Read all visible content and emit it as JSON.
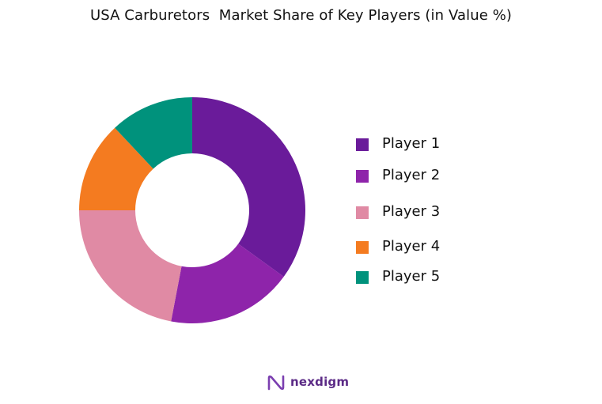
{
  "chart_data": {
    "type": "pie",
    "subtype": "donut",
    "title": "USA Carburetors  Market Share of Key Players (in Value %)",
    "categories": [
      "Player 1",
      "Player 2",
      "Player 3",
      "Player 4",
      "Player 5"
    ],
    "values": [
      35,
      18,
      22,
      13,
      12
    ],
    "colors": [
      "#6a1b9a",
      "#8e24aa",
      "#e08aa4",
      "#f47b20",
      "#00927c"
    ],
    "legend_position": "right"
  },
  "brand": {
    "name": "nexdigm",
    "icon": "nexdigm-logo-icon"
  }
}
